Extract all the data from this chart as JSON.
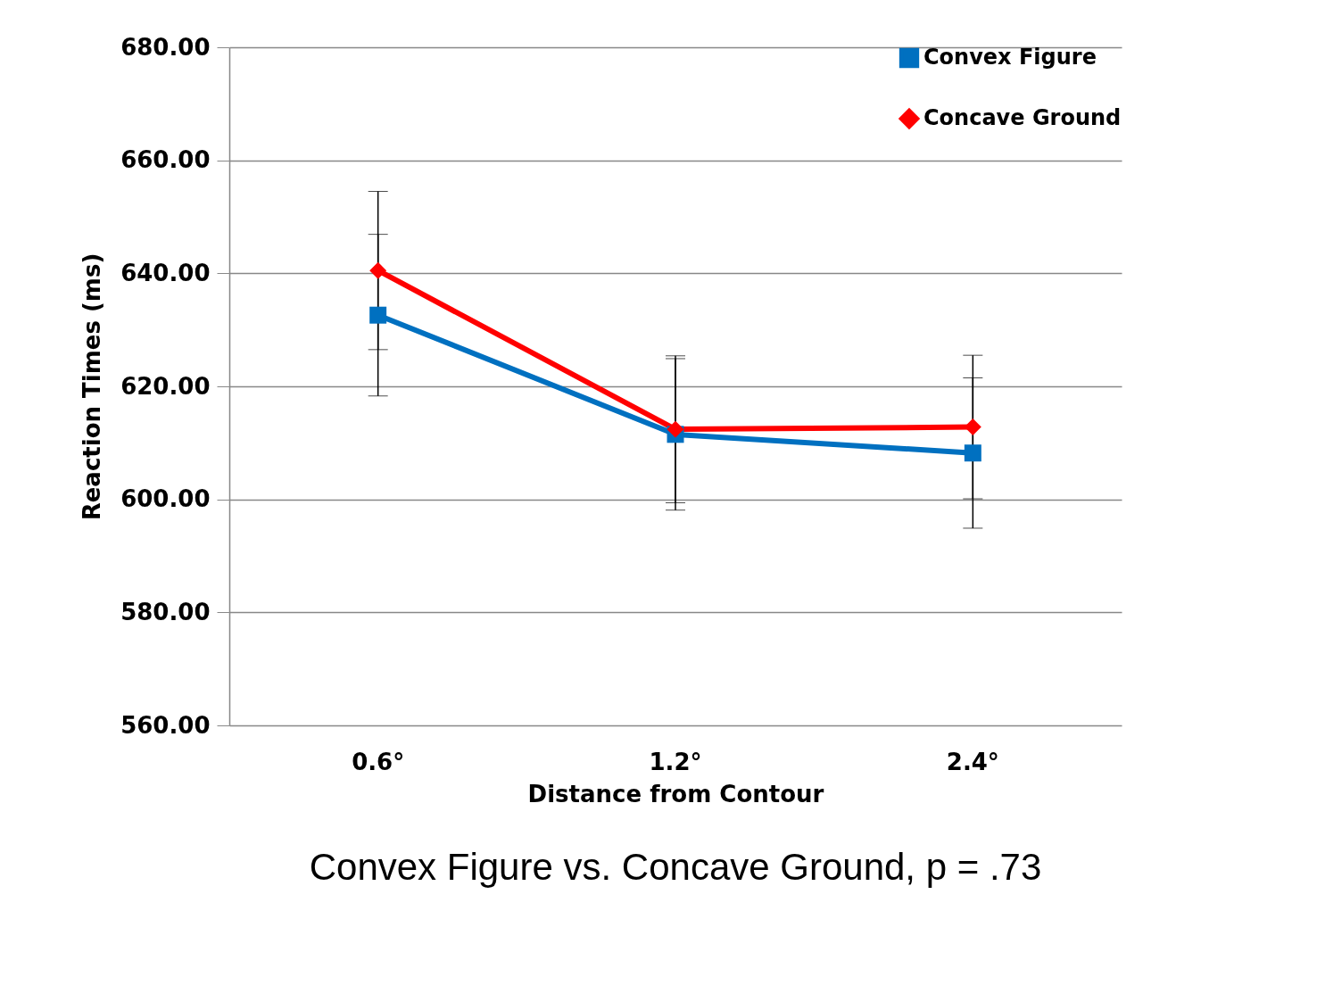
{
  "chart_data": {
    "type": "line",
    "xlabel": "Distance from Contour",
    "ylabel": "Reaction Times (ms)",
    "categories": [
      "0.6°",
      "1.2°",
      "2.4°"
    ],
    "series": [
      {
        "name": "Convex Figure",
        "color": "#0070c0",
        "marker": "square",
        "values": [
          632.6,
          611.5,
          608.2
        ],
        "errors": [
          14.3,
          13.4,
          13.3
        ]
      },
      {
        "name": "Concave Ground",
        "color": "#ff0000",
        "marker": "diamond",
        "values": [
          640.5,
          612.4,
          612.8
        ],
        "errors": [
          14,
          13,
          12.7
        ]
      }
    ],
    "ylim": [
      560,
      680
    ],
    "yticks": [
      {
        "value": 560,
        "label": "560.00"
      },
      {
        "value": 580,
        "label": "580.00"
      },
      {
        "value": 600,
        "label": "600.00"
      },
      {
        "value": 620,
        "label": "620.00"
      },
      {
        "value": 640,
        "label": "640.00"
      },
      {
        "value": 660,
        "label": "660.00"
      },
      {
        "value": 680,
        "label": "680.00"
      }
    ],
    "grid": "y",
    "legend": "top right",
    "annotations": [
      "Convex Figure  vs. Concave Ground,  p = .73"
    ]
  }
}
